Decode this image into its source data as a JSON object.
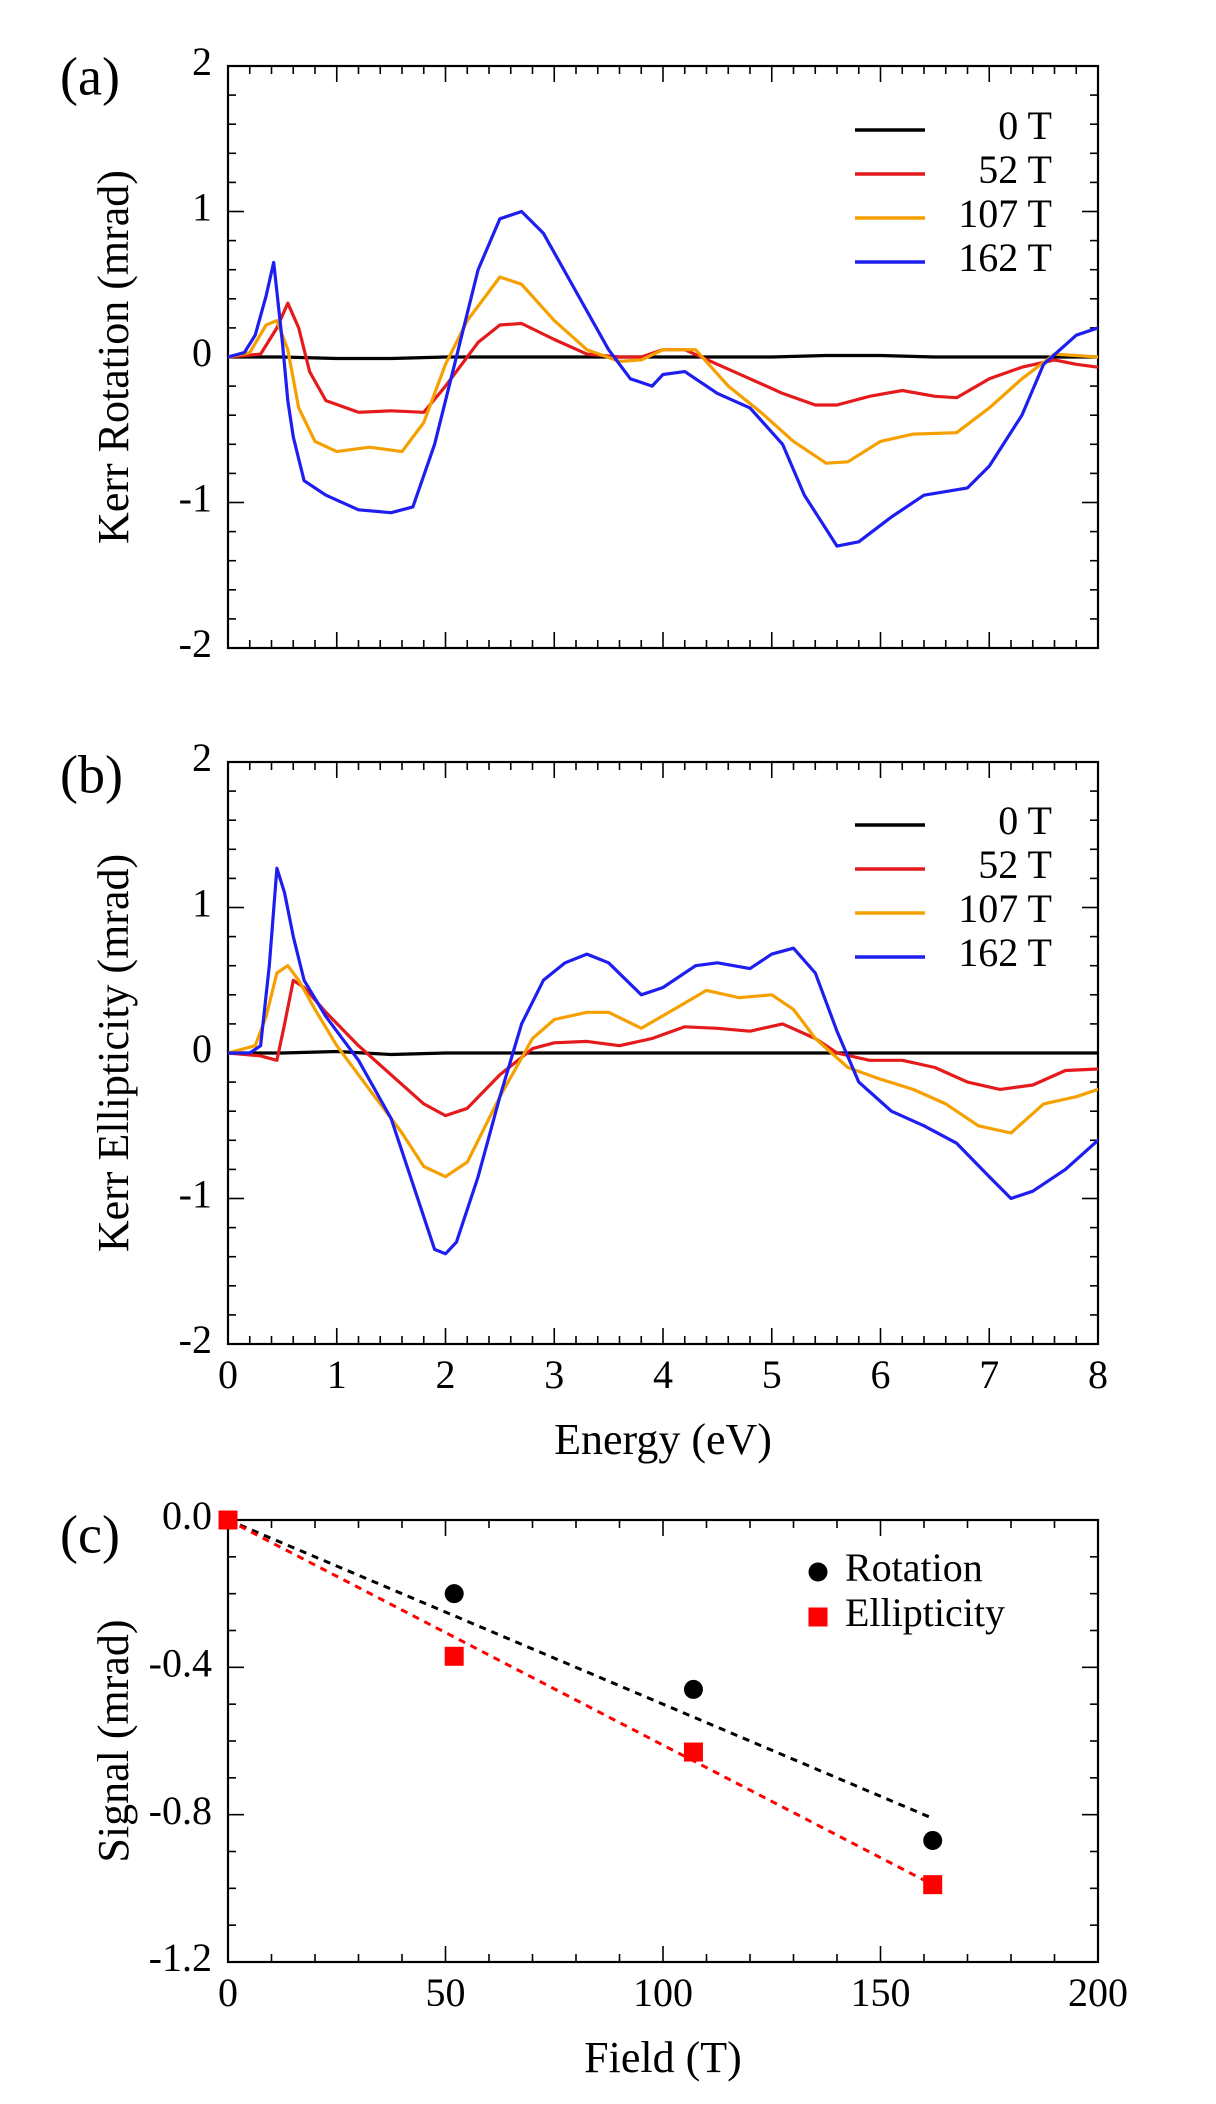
{
  "chart_data": [
    {
      "panel": "(a)",
      "type": "line",
      "ylabel": "Kerr Rotation (mrad)",
      "xlim": [
        0,
        8
      ],
      "ylim": [
        -2,
        2
      ],
      "yticks": [
        2,
        1,
        0,
        -1,
        -2
      ],
      "ytick_labels": [
        "2",
        "1",
        "0",
        "-1",
        "-2"
      ],
      "grid": false,
      "legend_position": "top-right",
      "series": [
        {
          "name": "0 T",
          "color": "#000000",
          "x": [
            0,
            0.5,
            1.0,
            1.5,
            2.0,
            2.5,
            3.0,
            3.5,
            4.0,
            4.5,
            5.0,
            5.5,
            6.0,
            6.5,
            7.0,
            7.5,
            8.0
          ],
          "y": [
            0,
            0,
            -0.01,
            -0.01,
            0,
            0,
            0,
            0,
            0,
            0,
            0,
            0.01,
            0.01,
            0,
            0,
            0,
            0
          ]
        },
        {
          "name": "52 T",
          "color": "#e41a1c",
          "x": [
            0,
            0.3,
            0.45,
            0.55,
            0.65,
            0.75,
            0.9,
            1.2,
            1.5,
            1.8,
            2.0,
            2.3,
            2.5,
            2.7,
            3.0,
            3.3,
            3.6,
            3.8,
            4.0,
            4.2,
            4.5,
            4.8,
            5.1,
            5.4,
            5.6,
            5.9,
            6.2,
            6.5,
            6.7,
            7.0,
            7.3,
            7.6,
            7.8,
            8.0
          ],
          "y": [
            0,
            0.02,
            0.2,
            0.37,
            0.2,
            -0.1,
            -0.3,
            -0.38,
            -0.37,
            -0.38,
            -0.2,
            0.1,
            0.22,
            0.23,
            0.12,
            0.02,
            0,
            0,
            0.05,
            0.05,
            -0.05,
            -0.15,
            -0.25,
            -0.33,
            -0.33,
            -0.27,
            -0.23,
            -0.27,
            -0.28,
            -0.15,
            -0.07,
            -0.02,
            -0.05,
            -0.07
          ]
        },
        {
          "name": "107 T",
          "color": "#f6a000",
          "x": [
            0,
            0.2,
            0.35,
            0.45,
            0.55,
            0.65,
            0.8,
            1.0,
            1.3,
            1.6,
            1.8,
            2.0,
            2.2,
            2.5,
            2.7,
            3.0,
            3.3,
            3.6,
            3.8,
            4.0,
            4.3,
            4.6,
            4.9,
            5.2,
            5.5,
            5.7,
            6.0,
            6.3,
            6.7,
            7.0,
            7.3,
            7.6,
            8.0
          ],
          "y": [
            0,
            0.03,
            0.22,
            0.25,
            0.05,
            -0.35,
            -0.58,
            -0.65,
            -0.62,
            -0.65,
            -0.45,
            -0.05,
            0.25,
            0.55,
            0.5,
            0.25,
            0.05,
            -0.03,
            -0.02,
            0.05,
            0.05,
            -0.2,
            -0.38,
            -0.58,
            -0.73,
            -0.72,
            -0.58,
            -0.53,
            -0.52,
            -0.35,
            -0.15,
            0.02,
            0
          ]
        },
        {
          "name": "162 T",
          "color": "#1e1ef0",
          "x": [
            0,
            0.15,
            0.25,
            0.35,
            0.42,
            0.5,
            0.55,
            0.6,
            0.7,
            0.9,
            1.2,
            1.5,
            1.7,
            1.9,
            2.1,
            2.3,
            2.5,
            2.7,
            2.9,
            3.2,
            3.5,
            3.7,
            3.9,
            4.0,
            4.2,
            4.5,
            4.8,
            5.1,
            5.3,
            5.6,
            5.8,
            6.1,
            6.4,
            6.8,
            7.0,
            7.3,
            7.5,
            7.8,
            8.0
          ],
          "y": [
            0,
            0.03,
            0.15,
            0.42,
            0.65,
            0.1,
            -0.3,
            -0.55,
            -0.85,
            -0.95,
            -1.05,
            -1.07,
            -1.03,
            -0.6,
            0.0,
            0.6,
            0.95,
            1.0,
            0.85,
            0.45,
            0.05,
            -0.15,
            -0.2,
            -0.12,
            -0.1,
            -0.25,
            -0.35,
            -0.6,
            -0.95,
            -1.3,
            -1.27,
            -1.1,
            -0.95,
            -0.9,
            -0.75,
            -0.4,
            -0.05,
            0.15,
            0.2
          ]
        }
      ]
    },
    {
      "panel": "(b)",
      "type": "line",
      "xlabel": "Energy (eV)",
      "ylabel": "Kerr Ellipticity (mrad)",
      "xlim": [
        0,
        8
      ],
      "ylim": [
        -2,
        2
      ],
      "xticks": [
        0,
        1,
        2,
        3,
        4,
        5,
        6,
        7,
        8
      ],
      "xtick_labels": [
        "0",
        "1",
        "2",
        "3",
        "4",
        "5",
        "6",
        "7",
        "8"
      ],
      "yticks": [
        2,
        1,
        0,
        -1,
        -2
      ],
      "ytick_labels": [
        "2",
        "1",
        "0",
        "-1",
        "-2"
      ],
      "grid": false,
      "legend_position": "top-right",
      "series": [
        {
          "name": "0 T",
          "color": "#000000",
          "x": [
            0,
            0.5,
            1.0,
            1.5,
            2.0,
            2.5,
            3.0,
            3.5,
            4.0,
            4.5,
            5.0,
            5.5,
            6.0,
            6.5,
            7.0,
            7.5,
            8.0
          ],
          "y": [
            0,
            0,
            0.01,
            -0.01,
            0,
            0,
            0,
            0,
            0,
            0,
            0,
            0,
            0,
            0,
            0,
            0,
            0
          ]
        },
        {
          "name": "52 T",
          "color": "#e41a1c",
          "x": [
            0,
            0.3,
            0.45,
            0.52,
            0.6,
            0.7,
            0.9,
            1.2,
            1.5,
            1.8,
            2.0,
            2.2,
            2.5,
            2.8,
            3.0,
            3.3,
            3.6,
            3.9,
            4.2,
            4.5,
            4.8,
            5.1,
            5.4,
            5.6,
            5.9,
            6.2,
            6.5,
            6.8,
            7.1,
            7.4,
            7.7,
            8.0
          ],
          "y": [
            0,
            -0.02,
            -0.05,
            0.2,
            0.5,
            0.45,
            0.28,
            0.05,
            -0.15,
            -0.35,
            -0.43,
            -0.38,
            -0.15,
            0.03,
            0.07,
            0.08,
            0.05,
            0.1,
            0.18,
            0.17,
            0.15,
            0.2,
            0.1,
            0,
            -0.05,
            -0.05,
            -0.1,
            -0.2,
            -0.25,
            -0.22,
            -0.12,
            -0.11
          ]
        },
        {
          "name": "107 T",
          "color": "#f6a000",
          "x": [
            0,
            0.25,
            0.35,
            0.45,
            0.55,
            0.65,
            0.8,
            1.0,
            1.3,
            1.6,
            1.8,
            2.0,
            2.2,
            2.5,
            2.8,
            3.0,
            3.3,
            3.5,
            3.8,
            4.1,
            4.4,
            4.7,
            5.0,
            5.2,
            5.4,
            5.7,
            6.0,
            6.3,
            6.6,
            6.9,
            7.2,
            7.5,
            7.8,
            8.0
          ],
          "y": [
            0,
            0.05,
            0.25,
            0.55,
            0.6,
            0.5,
            0.3,
            0.05,
            -0.25,
            -0.55,
            -0.78,
            -0.85,
            -0.75,
            -0.3,
            0.1,
            0.23,
            0.28,
            0.28,
            0.17,
            0.3,
            0.43,
            0.38,
            0.4,
            0.3,
            0.1,
            -0.1,
            -0.18,
            -0.25,
            -0.35,
            -0.5,
            -0.55,
            -0.35,
            -0.3,
            -0.25
          ]
        },
        {
          "name": "162 T",
          "color": "#1e1ef0",
          "x": [
            0,
            0.2,
            0.3,
            0.38,
            0.45,
            0.52,
            0.6,
            0.7,
            0.9,
            1.2,
            1.5,
            1.7,
            1.9,
            2.0,
            2.1,
            2.3,
            2.5,
            2.7,
            2.9,
            3.1,
            3.3,
            3.5,
            3.8,
            4.0,
            4.3,
            4.5,
            4.8,
            5.0,
            5.2,
            5.4,
            5.6,
            5.8,
            6.1,
            6.4,
            6.7,
            7.0,
            7.2,
            7.4,
            7.7,
            8.0
          ],
          "y": [
            0,
            0,
            0.05,
            0.6,
            1.27,
            1.1,
            0.8,
            0.5,
            0.25,
            -0.05,
            -0.45,
            -0.9,
            -1.35,
            -1.38,
            -1.3,
            -0.85,
            -0.3,
            0.2,
            0.5,
            0.62,
            0.68,
            0.62,
            0.4,
            0.45,
            0.6,
            0.62,
            0.58,
            0.68,
            0.72,
            0.55,
            0.15,
            -0.2,
            -0.4,
            -0.5,
            -0.62,
            -0.85,
            -1.0,
            -0.95,
            -0.8,
            -0.6
          ]
        }
      ]
    },
    {
      "panel": "(c)",
      "type": "scatter",
      "xlabel": "Field (T)",
      "ylabel": "Signal (mrad)",
      "xlim": [
        0,
        200
      ],
      "ylim": [
        -1.2,
        0
      ],
      "xticks": [
        0,
        50,
        100,
        150,
        200
      ],
      "xtick_labels": [
        "0",
        "50",
        "100",
        "150",
        "200"
      ],
      "yticks": [
        0,
        -0.4,
        -0.8,
        -1.2
      ],
      "ytick_labels": [
        "0.0",
        "-0.4",
        "-0.8",
        "-1.2"
      ],
      "grid": false,
      "legend_position": "top-right",
      "series": [
        {
          "name": "Rotation",
          "marker": "circle",
          "color": "#000000",
          "x": [
            0,
            52,
            107,
            162
          ],
          "y": [
            0,
            -0.2,
            -0.46,
            -0.87
          ],
          "fit": {
            "x": [
              0,
              162
            ],
            "y": [
              0,
              -0.81
            ]
          }
        },
        {
          "name": "Ellipticity",
          "marker": "square",
          "color": "#ff0000",
          "x": [
            0,
            52,
            107,
            162
          ],
          "y": [
            0,
            -0.37,
            -0.63,
            -0.99
          ],
          "fit": {
            "x": [
              0,
              162
            ],
            "y": [
              0,
              -0.99
            ]
          }
        }
      ]
    }
  ]
}
